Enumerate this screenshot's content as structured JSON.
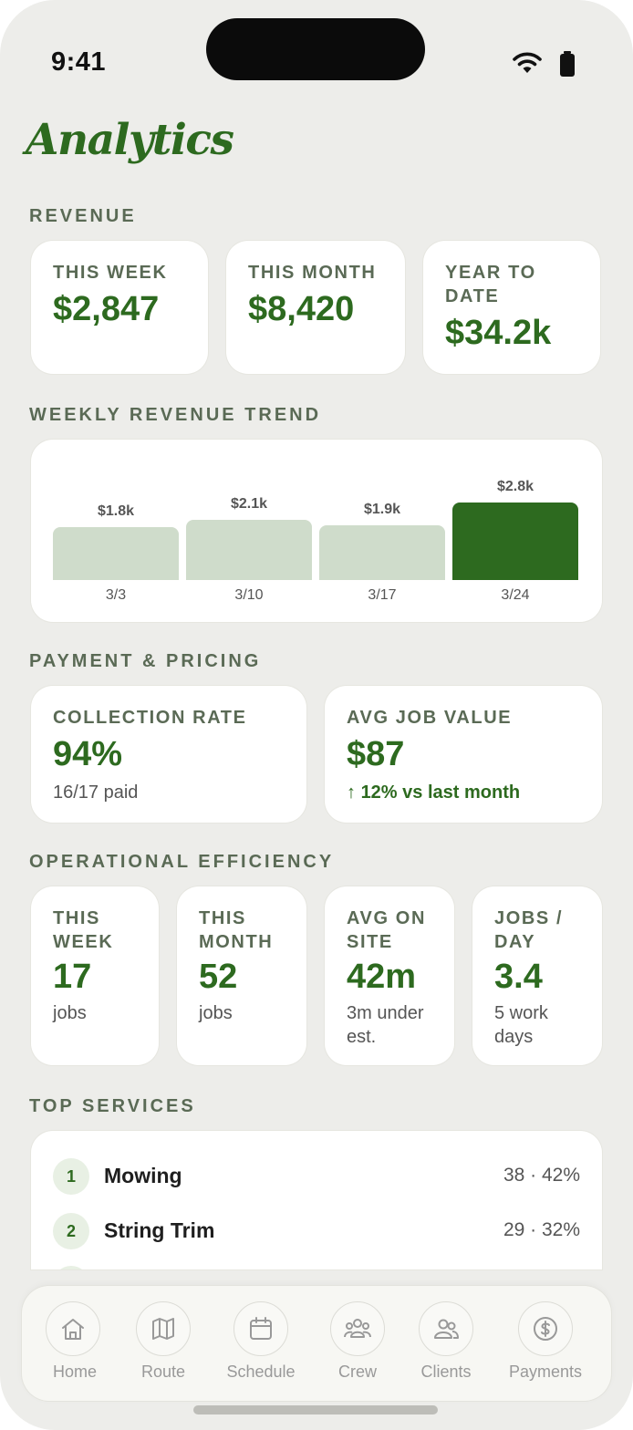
{
  "status": {
    "time": "9:41"
  },
  "page": {
    "title": "Analytics"
  },
  "revenue": {
    "label": "REVENUE",
    "cards": [
      {
        "label": "THIS WEEK",
        "value": "$2,847"
      },
      {
        "label": "THIS MONTH",
        "value": "$8,420"
      },
      {
        "label": "YEAR TO DATE",
        "value": "$34.2k"
      }
    ]
  },
  "trend": {
    "label": "WEEKLY REVENUE TREND",
    "value_labels": [
      "$1.8k",
      "$2.1k",
      "$1.9k",
      "$2.8k"
    ],
    "accent": "#2d6a1f",
    "muted": "#cfdccb"
  },
  "chart_data": {
    "type": "bar",
    "categories": [
      "3/3",
      "3/10",
      "3/17",
      "3/24"
    ],
    "values": [
      1.8,
      2.1,
      1.9,
      2.8
    ],
    "title": "WEEKLY REVENUE TREND",
    "highlighted_category": "3/24",
    "grid": false
  },
  "payment": {
    "label": "PAYMENT & PRICING",
    "collection": {
      "label": "COLLECTION RATE",
      "value": "94%",
      "sub": "16/17 paid"
    },
    "avg_job": {
      "label": "AVG JOB VALUE",
      "value": "$87",
      "arrow": "↑",
      "sub": "12% vs last month"
    }
  },
  "efficiency": {
    "label": "OPERATIONAL EFFICIENCY",
    "cards": [
      {
        "label": "THIS WEEK",
        "value": "17",
        "sub": "jobs"
      },
      {
        "label": "THIS MONTH",
        "value": "52",
        "sub": "jobs"
      },
      {
        "label": "AVG ON SITE",
        "value": "42m",
        "sub": "3m under est."
      },
      {
        "label": "JOBS / DAY",
        "value": "3.4",
        "sub": "5 work days"
      }
    ]
  },
  "services": {
    "label": "TOP SERVICES",
    "items": [
      {
        "rank": "1",
        "name": "Mowing",
        "stat": "38 · 42%"
      },
      {
        "rank": "2",
        "name": "String Trim",
        "stat": "29 · 32%"
      }
    ]
  },
  "tabs": [
    {
      "label": "Home",
      "icon": "home-icon"
    },
    {
      "label": "Route",
      "icon": "map-icon"
    },
    {
      "label": "Schedule",
      "icon": "calendar-icon"
    },
    {
      "label": "Crew",
      "icon": "crew-icon"
    },
    {
      "label": "Clients",
      "icon": "clients-icon"
    },
    {
      "label": "Payments",
      "icon": "dollar-icon"
    }
  ]
}
